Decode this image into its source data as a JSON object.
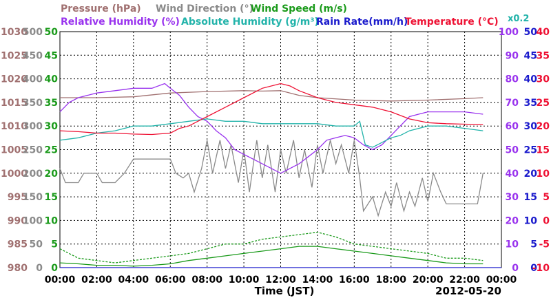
{
  "legend": {
    "row1": [
      {
        "text": "Pressure (hPa)",
        "color": "#a07070"
      },
      {
        "text": "Wind Direction (°)",
        "color": "#8a8a8a"
      },
      {
        "text": "Wind Speed (m/s)",
        "color": "#1a9a1a"
      }
    ],
    "row2": [
      {
        "text": "Relative Humidity (%)",
        "color": "#9933ee"
      },
      {
        "text": "Absolute Humidity (g/m³)",
        "color": "#22b3aa"
      },
      {
        "text": "Rain Rate(mm/h)",
        "color": "#1a1acc"
      },
      {
        "text": "Temperature (°C)",
        "color": "#ee1133"
      }
    ],
    "ah_scale": {
      "text": "x0.2",
      "color": "#22b3aa"
    }
  },
  "x_axis": {
    "label": "Time (JST)",
    "date": "2012-05-20",
    "ticks": [
      "00:00",
      "02:00",
      "04:00",
      "06:00",
      "08:00",
      "10:00",
      "12:00",
      "14:00",
      "16:00",
      "18:00",
      "20:00",
      "22:00",
      "00:00"
    ]
  },
  "left_axes": [
    {
      "name": "pressure",
      "color": "#a07070",
      "ticks": [
        "1030",
        "1025",
        "1020",
        "1015",
        "1010",
        "1005",
        "1000",
        "995",
        "990",
        "985",
        "980"
      ]
    },
    {
      "name": "wind-direction",
      "color": "#8a8a8a",
      "ticks": [
        "500",
        "450",
        "400",
        "350",
        "300",
        "250",
        "200",
        "150",
        "100",
        "50",
        "0"
      ]
    },
    {
      "name": "wind-speed",
      "color": "#1a9a1a",
      "ticks": [
        "50",
        "45",
        "40",
        "35",
        "30",
        "25",
        "20",
        "15",
        "10",
        "5",
        "0"
      ]
    }
  ],
  "right_axes": [
    {
      "name": "humidity",
      "color": "#9933ee",
      "ticks": [
        "100",
        "90",
        "80",
        "70",
        "60",
        "50",
        "40",
        "30",
        "20",
        "10",
        "0"
      ]
    },
    {
      "name": "rain-rate",
      "color": "#1a1acc",
      "ticks": [
        "50",
        "45",
        "40",
        "35",
        "30",
        "25",
        "20",
        "15",
        "10",
        "5",
        "0"
      ]
    },
    {
      "name": "temperature",
      "color": "#ee1133",
      "ticks": [
        "40",
        "35",
        "30",
        "25",
        "20",
        "15",
        "10",
        "5",
        "0",
        "-5",
        "-10"
      ]
    }
  ],
  "chart_data": {
    "type": "line",
    "x_unit": "hours since 2012-05-20 00:00 JST",
    "xlim": [
      0,
      24
    ],
    "grid": true,
    "series": [
      {
        "name": "Pressure (hPa)",
        "axis": "pressure",
        "ylim": [
          980,
          1030
        ],
        "color": "#a07070",
        "points": [
          [
            0,
            1016
          ],
          [
            2,
            1016
          ],
          [
            4,
            1016.2
          ],
          [
            6,
            1017
          ],
          [
            8,
            1017.3
          ],
          [
            10,
            1017.5
          ],
          [
            11,
            1017.4
          ],
          [
            12,
            1017.5
          ],
          [
            13,
            1016.5
          ],
          [
            14,
            1016
          ],
          [
            16,
            1015.5
          ],
          [
            18,
            1015.3
          ],
          [
            20,
            1015.5
          ],
          [
            22,
            1015.8
          ],
          [
            23,
            1016
          ]
        ]
      },
      {
        "name": "Wind Direction (°)",
        "axis": "wind-direction",
        "ylim": [
          0,
          500
        ],
        "color": "#8a8a8a",
        "points": [
          [
            0,
            210
          ],
          [
            0.3,
            180
          ],
          [
            1,
            180
          ],
          [
            1.3,
            200
          ],
          [
            2,
            200
          ],
          [
            2.3,
            180
          ],
          [
            3,
            180
          ],
          [
            3.5,
            200
          ],
          [
            4,
            230
          ],
          [
            4.5,
            230
          ],
          [
            5,
            230
          ],
          [
            6,
            230
          ],
          [
            6.3,
            200
          ],
          [
            6.7,
            190
          ],
          [
            7,
            200
          ],
          [
            7.3,
            160
          ],
          [
            7.7,
            210
          ],
          [
            8,
            270
          ],
          [
            8.3,
            200
          ],
          [
            8.7,
            270
          ],
          [
            9,
            210
          ],
          [
            9.3,
            260
          ],
          [
            9.7,
            180
          ],
          [
            10,
            250
          ],
          [
            10.3,
            160
          ],
          [
            10.7,
            270
          ],
          [
            11,
            190
          ],
          [
            11.3,
            260
          ],
          [
            11.7,
            160
          ],
          [
            12,
            250
          ],
          [
            12.3,
            200
          ],
          [
            12.7,
            270
          ],
          [
            13,
            190
          ],
          [
            13.3,
            250
          ],
          [
            13.7,
            170
          ],
          [
            14,
            260
          ],
          [
            14.3,
            200
          ],
          [
            14.7,
            270
          ],
          [
            15,
            220
          ],
          [
            15.3,
            260
          ],
          [
            15.7,
            200
          ],
          [
            16,
            270
          ],
          [
            16.3,
            190
          ],
          [
            16.5,
            120
          ],
          [
            17,
            150
          ],
          [
            17.3,
            110
          ],
          [
            17.7,
            160
          ],
          [
            18,
            130
          ],
          [
            18.3,
            180
          ],
          [
            18.7,
            120
          ],
          [
            19,
            160
          ],
          [
            19.3,
            130
          ],
          [
            19.7,
            190
          ],
          [
            20,
            140
          ],
          [
            20.3,
            200
          ],
          [
            20.7,
            160
          ],
          [
            21,
            135
          ],
          [
            21.5,
            135
          ],
          [
            22,
            135
          ],
          [
            22.7,
            135
          ],
          [
            23,
            200
          ]
        ]
      },
      {
        "name": "Wind Speed (m/s)",
        "axis": "wind-speed",
        "ylim": [
          0,
          50
        ],
        "color": "#1a9a1a",
        "style": "solid",
        "points": [
          [
            0,
            1
          ],
          [
            1,
            0.8
          ],
          [
            2,
            0.5
          ],
          [
            3,
            0.5
          ],
          [
            4,
            0.3
          ],
          [
            5,
            0.5
          ],
          [
            6,
            0.8
          ],
          [
            7,
            1.5
          ],
          [
            8,
            2
          ],
          [
            9,
            2.5
          ],
          [
            10,
            3
          ],
          [
            11,
            3.5
          ],
          [
            12,
            4
          ],
          [
            13,
            4.5
          ],
          [
            14,
            4.5
          ],
          [
            15,
            4
          ],
          [
            16,
            3.5
          ],
          [
            17,
            3
          ],
          [
            18,
            2.5
          ],
          [
            19,
            2
          ],
          [
            20,
            1.5
          ],
          [
            21,
            1
          ],
          [
            22,
            0.8
          ],
          [
            23,
            0.8
          ]
        ]
      },
      {
        "name": "Wind Speed gust (m/s)",
        "axis": "wind-speed",
        "ylim": [
          0,
          50
        ],
        "color": "#1a9a1a",
        "style": "dashed",
        "points": [
          [
            0,
            4
          ],
          [
            1,
            2
          ],
          [
            2,
            1.5
          ],
          [
            3,
            1
          ],
          [
            4,
            1.5
          ],
          [
            5,
            2
          ],
          [
            6,
            2.5
          ],
          [
            7,
            3
          ],
          [
            8,
            4
          ],
          [
            9,
            5
          ],
          [
            10,
            5
          ],
          [
            11,
            6
          ],
          [
            12,
            6.5
          ],
          [
            13,
            7
          ],
          [
            14,
            7.5
          ],
          [
            15,
            6.5
          ],
          [
            16,
            5
          ],
          [
            17,
            4.5
          ],
          [
            18,
            4
          ],
          [
            19,
            3.5
          ],
          [
            20,
            3
          ],
          [
            21,
            2
          ],
          [
            22,
            2
          ],
          [
            23,
            1.5
          ]
        ]
      },
      {
        "name": "Relative Humidity (%)",
        "axis": "humidity",
        "ylim": [
          0,
          100
        ],
        "color": "#9933ee",
        "points": [
          [
            0,
            66
          ],
          [
            0.5,
            70
          ],
          [
            1,
            72
          ],
          [
            2,
            74
          ],
          [
            3,
            75
          ],
          [
            4,
            76
          ],
          [
            5,
            76
          ],
          [
            5.7,
            78
          ],
          [
            6,
            76
          ],
          [
            6.5,
            73
          ],
          [
            7,
            68
          ],
          [
            7.5,
            64
          ],
          [
            8,
            62
          ],
          [
            8.5,
            58
          ],
          [
            9,
            55
          ],
          [
            9.5,
            50
          ],
          [
            10,
            48
          ],
          [
            10.5,
            46
          ],
          [
            11,
            44
          ],
          [
            11.5,
            42
          ],
          [
            12,
            40
          ],
          [
            12.5,
            42
          ],
          [
            13,
            44
          ],
          [
            13.5,
            47
          ],
          [
            14,
            50
          ],
          [
            14.5,
            54
          ],
          [
            15,
            55
          ],
          [
            15.5,
            56
          ],
          [
            16,
            55
          ],
          [
            16.5,
            52
          ],
          [
            17,
            50
          ],
          [
            17.5,
            52
          ],
          [
            18,
            56
          ],
          [
            18.5,
            60
          ],
          [
            19,
            64
          ],
          [
            19.5,
            65
          ],
          [
            20,
            66
          ],
          [
            21,
            66
          ],
          [
            22,
            66
          ],
          [
            23,
            65
          ]
        ]
      },
      {
        "name": "Absolute Humidity (g/m³)",
        "axis": "humidity",
        "ylim": [
          0,
          100
        ],
        "color": "#22b3aa",
        "points": [
          [
            0,
            54
          ],
          [
            1,
            55
          ],
          [
            2,
            57
          ],
          [
            3,
            58
          ],
          [
            4,
            60
          ],
          [
            5,
            60
          ],
          [
            6,
            61
          ],
          [
            7,
            62
          ],
          [
            8,
            63
          ],
          [
            9,
            62
          ],
          [
            10,
            62
          ],
          [
            11,
            61
          ],
          [
            12,
            61
          ],
          [
            13,
            61
          ],
          [
            14,
            61
          ],
          [
            15,
            60
          ],
          [
            16,
            60
          ],
          [
            16.3,
            62
          ],
          [
            16.6,
            52
          ],
          [
            17,
            51
          ],
          [
            17.5,
            53
          ],
          [
            18,
            55
          ],
          [
            18.5,
            56
          ],
          [
            19,
            58
          ],
          [
            20,
            60
          ],
          [
            21,
            60
          ],
          [
            22,
            59
          ],
          [
            23,
            58
          ]
        ]
      },
      {
        "name": "Rain Rate(mm/h)",
        "axis": "rain-rate",
        "ylim": [
          0,
          50
        ],
        "color": "#1a1acc",
        "points": [
          [
            0,
            0
          ],
          [
            24,
            0
          ]
        ]
      },
      {
        "name": "Temperature (°C)",
        "axis": "temperature",
        "ylim": [
          -10,
          40
        ],
        "color": "#ee1133",
        "points": [
          [
            0,
            19
          ],
          [
            1,
            18.8
          ],
          [
            2,
            18.5
          ],
          [
            3,
            18.5
          ],
          [
            4,
            18.3
          ],
          [
            5,
            18.2
          ],
          [
            6,
            18.5
          ],
          [
            6.5,
            19.5
          ],
          [
            7,
            20
          ],
          [
            7.5,
            21
          ],
          [
            8,
            22
          ],
          [
            9,
            24
          ],
          [
            10,
            26
          ],
          [
            11,
            28
          ],
          [
            12,
            29
          ],
          [
            12.5,
            28.5
          ],
          [
            13,
            27.5
          ],
          [
            14,
            26
          ],
          [
            15,
            25
          ],
          [
            16,
            24.5
          ],
          [
            17,
            24
          ],
          [
            18,
            23
          ],
          [
            19,
            21.5
          ],
          [
            20,
            20.7
          ],
          [
            21,
            20.5
          ],
          [
            22,
            20.4
          ],
          [
            23,
            20.3
          ]
        ]
      }
    ]
  }
}
